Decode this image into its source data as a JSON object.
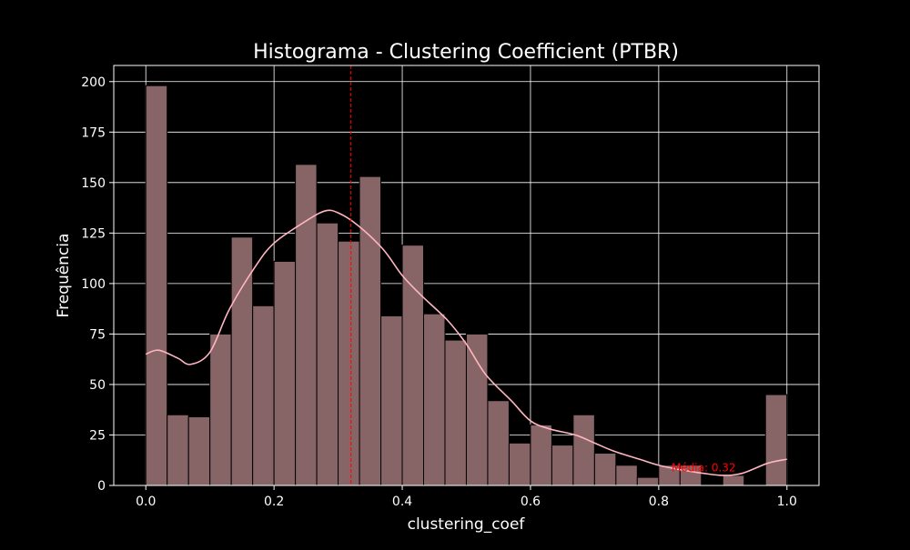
{
  "chart_data": {
    "type": "bar",
    "title": "Histograma - Clustering Coefficient (PTBR)",
    "xlabel": "clustering_coef",
    "ylabel": "Frequência",
    "xlim": [
      -0.05,
      1.05
    ],
    "ylim": [
      0,
      208
    ],
    "xticks": [
      0.0,
      0.2,
      0.4,
      0.6,
      0.8,
      1.0
    ],
    "xtick_labels": [
      "0.0",
      "0.2",
      "0.4",
      "0.6",
      "0.8",
      "1.0"
    ],
    "yticks": [
      0,
      25,
      50,
      75,
      100,
      125,
      150,
      175,
      200
    ],
    "ytick_labels": [
      "0",
      "25",
      "50",
      "75",
      "100",
      "125",
      "150",
      "175",
      "200"
    ],
    "grid": true,
    "bin_start": 0.0,
    "bin_width": 0.03333,
    "values": [
      198,
      35,
      34,
      75,
      123,
      89,
      111,
      159,
      130,
      121,
      153,
      84,
      119,
      85,
      72,
      75,
      42,
      21,
      30,
      20,
      35,
      16,
      10,
      4,
      10,
      10,
      0,
      5,
      0,
      45
    ],
    "kde": {
      "x": [
        0.0,
        0.02,
        0.05,
        0.07,
        0.1,
        0.13,
        0.17,
        0.2,
        0.25,
        0.28,
        0.3,
        0.33,
        0.37,
        0.4,
        0.43,
        0.47,
        0.5,
        0.53,
        0.57,
        0.6,
        0.63,
        0.67,
        0.7,
        0.73,
        0.77,
        0.8,
        0.83,
        0.87,
        0.9,
        0.93,
        0.97,
        1.0
      ],
      "y": [
        65,
        67,
        63,
        60,
        66,
        87,
        108,
        120,
        131,
        136,
        135,
        129,
        117,
        104,
        94,
        82,
        70,
        55,
        42,
        32,
        28,
        25,
        21,
        17,
        13,
        10,
        8,
        6,
        5,
        6,
        11,
        13
      ]
    },
    "mean_line": {
      "x": 0.32,
      "label": "Média: 0.32",
      "label_y": 7
    },
    "colors": {
      "background": "#000000",
      "bar_fill": "#876465",
      "bar_edge": "#000000",
      "kde_line": "#ffb6c1",
      "mean_line": "#ff0000",
      "grid": "#ffffff",
      "text": "#ffffff",
      "axes": "#ffffff"
    }
  }
}
